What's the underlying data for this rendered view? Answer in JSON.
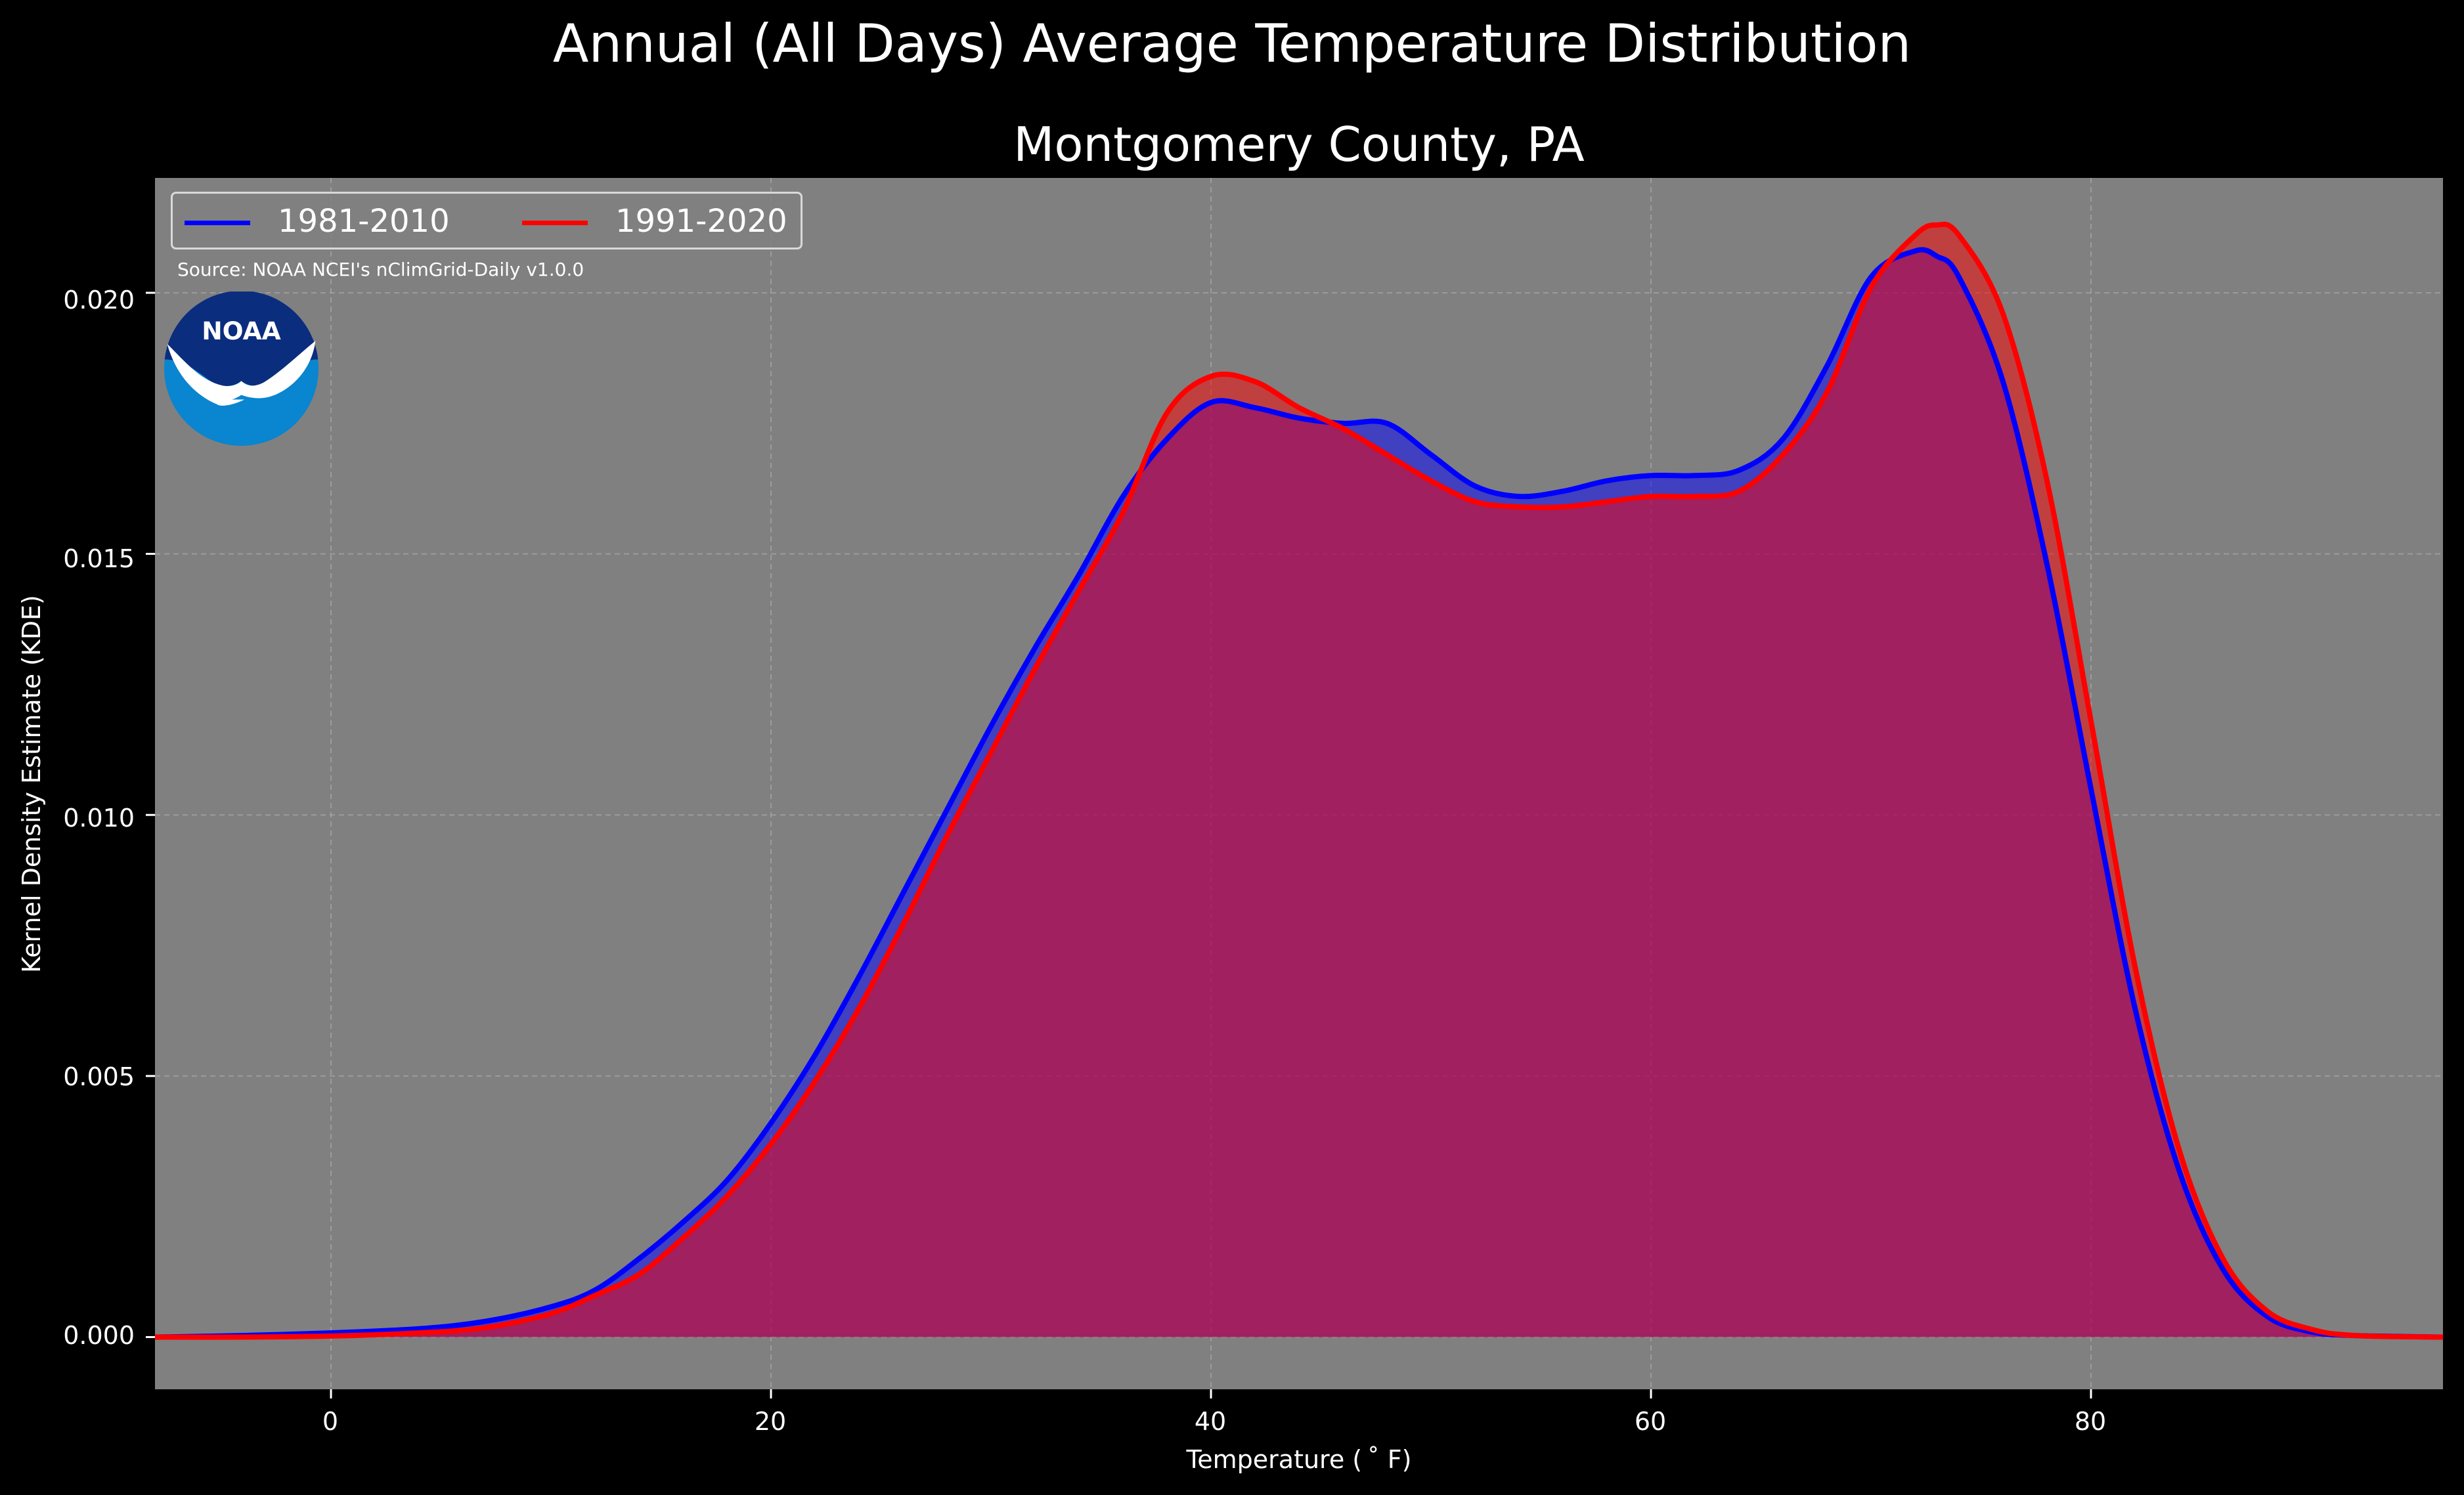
{
  "title": "Annual (All Days) Average Temperature Distribution",
  "subtitle": "Montgomery County, PA",
  "source_note": "Source: NOAA NCEI's nClimGrid-Daily v1.0.0",
  "logo": {
    "text": "NOAA",
    "icon": "noaa-logo"
  },
  "colors": {
    "background": "#000000",
    "plot_bg": "#808080",
    "series_1": "#0000ff",
    "series_2": "#ff0000"
  },
  "chart_data": {
    "type": "area",
    "xlabel": "Temperature ($^\\circ$F)",
    "xlabel_display": "Temperature ( ˚ F)",
    "ylabel": "Kernel Density Estimate (KDE)",
    "xlim": [
      -8,
      96
    ],
    "ylim": [
      -0.001,
      0.0222
    ],
    "x_ticks": [
      0,
      20,
      40,
      60,
      80
    ],
    "y_ticks": [
      0.0,
      0.005,
      0.01,
      0.015,
      0.02
    ],
    "y_tick_labels": [
      "0.000",
      "0.005",
      "0.010",
      "0.015",
      "0.020"
    ],
    "grid": true,
    "legend_position": "top-left",
    "x": [
      -8,
      -4,
      0,
      4,
      7,
      10,
      12,
      14,
      16,
      18,
      20,
      22,
      24,
      26,
      28,
      30,
      32,
      34,
      36,
      38,
      40,
      42,
      44,
      46,
      48,
      50,
      52,
      54,
      56,
      58,
      60,
      62,
      64,
      66,
      68,
      70,
      72,
      73,
      74,
      76,
      78,
      80,
      82,
      84,
      86,
      88,
      90,
      92,
      96
    ],
    "series": [
      {
        "name": "1981-2010",
        "color": "#0000ff",
        "values": [
          0.0,
          3e-05,
          8e-05,
          0.00016,
          0.0003,
          0.00058,
          0.0009,
          0.0015,
          0.0022,
          0.003,
          0.0041,
          0.0054,
          0.0069,
          0.0085,
          0.0101,
          0.0117,
          0.0132,
          0.0146,
          0.0161,
          0.0172,
          0.0179,
          0.0178,
          0.0176,
          0.0175,
          0.0175,
          0.0169,
          0.0163,
          0.0161,
          0.0162,
          0.0164,
          0.0165,
          0.0165,
          0.0166,
          0.0172,
          0.0186,
          0.0203,
          0.0208,
          0.0207,
          0.0203,
          0.0183,
          0.0148,
          0.0105,
          0.0063,
          0.0032,
          0.0013,
          0.0004,
          0.0001,
          3e-05,
          0.0
        ]
      },
      {
        "name": "1991-2020",
        "color": "#ff0000",
        "values": [
          0.0,
          0.0,
          2e-05,
          8e-05,
          0.00018,
          0.00045,
          0.0008,
          0.0012,
          0.0019,
          0.0027,
          0.0037,
          0.0049,
          0.0063,
          0.0079,
          0.0096,
          0.0112,
          0.0128,
          0.0143,
          0.0158,
          0.0177,
          0.0184,
          0.0183,
          0.0178,
          0.0174,
          0.0169,
          0.0164,
          0.016,
          0.0159,
          0.0159,
          0.016,
          0.0161,
          0.0161,
          0.0162,
          0.0169,
          0.0181,
          0.0201,
          0.0211,
          0.0213,
          0.0211,
          0.0196,
          0.0164,
          0.0118,
          0.0071,
          0.0036,
          0.0015,
          0.0005,
          0.00015,
          3e-05,
          0.0
        ]
      }
    ]
  }
}
